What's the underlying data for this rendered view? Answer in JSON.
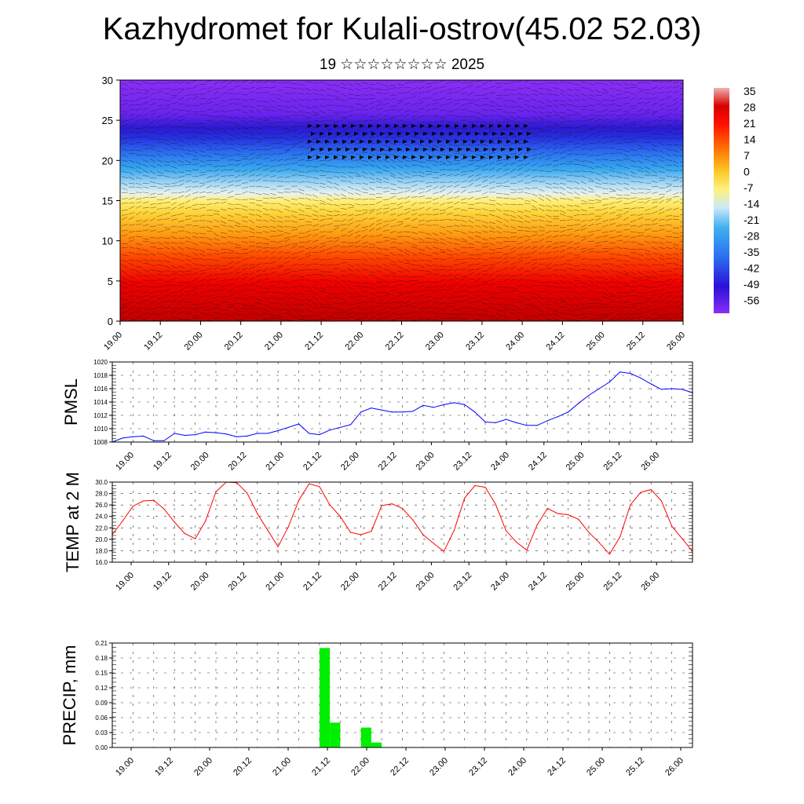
{
  "title": "Kazhydromet for Kulali-ostrov(45.02 52.03)",
  "subtitle": "19 ☆☆☆☆☆☆☆☆ 2025",
  "chart_data": [
    {
      "type": "heatmap",
      "ylim": [
        0,
        30
      ],
      "y_ticks": [
        "0",
        "5",
        "10",
        "15",
        "20",
        "25",
        "30"
      ],
      "x_ticks": [
        "19.00",
        "19.12",
        "20.00",
        "20.12",
        "21.00",
        "21.12",
        "22.00",
        "22.12",
        "23.00",
        "23.12",
        "24.00",
        "24.12",
        "25.00",
        "25.12",
        "26.00"
      ],
      "colorbar_labels": [
        "35",
        "28",
        "21",
        "14",
        "7",
        "0",
        "-7",
        "-14",
        "-21",
        "-28",
        "-35",
        "-42",
        "-49",
        "-56"
      ],
      "colors": {
        "cold": "#7f22f0",
        "cool": "#2a8ef0",
        "light": "#cfe8f7",
        "warm": "#ffe44a",
        "hot": "#e50000"
      }
    },
    {
      "type": "line",
      "ylabel": "PMSL",
      "ylim": [
        1008,
        1020
      ],
      "y_ticks": [
        "1008",
        "1010",
        "1012",
        "1014",
        "1016",
        "1018",
        "1020"
      ],
      "x_ticks": [
        "19.00",
        "19.12",
        "20.00",
        "20.12",
        "21.00",
        "21.12",
        "22.00",
        "22.12",
        "23.00",
        "23.12",
        "24.00",
        "24.12",
        "25.00",
        "25.12",
        "26.00"
      ],
      "x": [
        0,
        3,
        6,
        9,
        12,
        15,
        18,
        21,
        24,
        27,
        30,
        33,
        36,
        39,
        42,
        45,
        48,
        51,
        54,
        57,
        60,
        63,
        66,
        69,
        72,
        75,
        78,
        81,
        84,
        87,
        90,
        93,
        96,
        99,
        102,
        105,
        108,
        111,
        114,
        117,
        120,
        123,
        126,
        129,
        132,
        135,
        138,
        141,
        144,
        147,
        150,
        153,
        156,
        159,
        162,
        165,
        168
      ],
      "values": [
        1008.0,
        1008.6,
        1008.8,
        1008.9,
        1008.2,
        1008.2,
        1009.3,
        1009.0,
        1009.1,
        1009.5,
        1009.4,
        1009.2,
        1008.8,
        1008.9,
        1009.3,
        1009.3,
        1009.7,
        1010.2,
        1010.7,
        1009.3,
        1009.1,
        1009.8,
        1010.2,
        1010.6,
        1012.5,
        1013.1,
        1012.8,
        1012.5,
        1012.5,
        1012.6,
        1013.5,
        1013.2,
        1013.6,
        1013.9,
        1013.6,
        1012.5,
        1011.0,
        1010.9,
        1011.4,
        1010.9,
        1010.5,
        1010.5,
        1011.2,
        1011.8,
        1012.5,
        1013.8,
        1015.0,
        1016.0,
        1017.0,
        1018.5,
        1018.3,
        1017.6,
        1016.7,
        1015.9,
        1016.0,
        1015.9,
        1015.4
      ],
      "color": "#0000ff"
    },
    {
      "type": "line",
      "ylabel": "TEMP at 2 M",
      "ylim": [
        16,
        30
      ],
      "y_ticks": [
        "16.0",
        "18.0",
        "20.0",
        "22.0",
        "24.0",
        "26.0",
        "28.0",
        "30.0"
      ],
      "x_ticks": [
        "19.00",
        "19.12",
        "20.00",
        "20.12",
        "21.00",
        "21.12",
        "22.00",
        "22.12",
        "23.00",
        "23.12",
        "24.00",
        "24.12",
        "25.00",
        "25.12",
        "26.00"
      ],
      "x": [
        0,
        3,
        6,
        9,
        12,
        15,
        18,
        21,
        24,
        27,
        30,
        33,
        36,
        39,
        42,
        45,
        48,
        51,
        54,
        57,
        60,
        63,
        66,
        69,
        72,
        75,
        78,
        81,
        84,
        87,
        90,
        93,
        96,
        99,
        102,
        105,
        108,
        111,
        114,
        117,
        120,
        123,
        126,
        129,
        132,
        135,
        138,
        141,
        144,
        147,
        150,
        153,
        156,
        159,
        162,
        165,
        168
      ],
      "values": [
        20.8,
        23.2,
        25.8,
        26.7,
        26.8,
        25.3,
        23.0,
        21.0,
        20.1,
        23.2,
        28.3,
        30.0,
        29.9,
        28.1,
        24.5,
        21.6,
        18.7,
        22.2,
        26.8,
        29.7,
        29.2,
        26.0,
        24.0,
        21.2,
        20.8,
        21.4,
        25.9,
        26.2,
        25.4,
        23.4,
        20.8,
        19.3,
        17.9,
        21.6,
        27.2,
        29.4,
        29.1,
        26.1,
        21.5,
        19.5,
        18.1,
        22.5,
        25.4,
        24.5,
        24.3,
        23.5,
        21.2,
        19.4,
        17.4,
        20.4,
        26.0,
        28.2,
        28.7,
        26.7,
        22.3,
        20.1,
        17.9
      ],
      "color": "#ff0000"
    },
    {
      "type": "bar",
      "ylabel": "PRECIP, mm",
      "ylim": [
        0,
        0.21
      ],
      "y_ticks": [
        "0.00",
        "0.03",
        "0.06",
        "0.09",
        "0.12",
        "0.15",
        "0.18",
        "0.21"
      ],
      "x_ticks": [
        "19.00",
        "19.12",
        "20.00",
        "20.12",
        "21.00",
        "21.12",
        "22.00",
        "22.12",
        "23.00",
        "23.12",
        "24.00",
        "24.12",
        "25.00",
        "25.12",
        "26.00"
      ],
      "x": [
        60,
        63,
        66,
        69,
        72,
        75
      ],
      "values": [
        0.2,
        0.05,
        0,
        0,
        0.04,
        0.01
      ],
      "color": "#00ee00"
    }
  ]
}
